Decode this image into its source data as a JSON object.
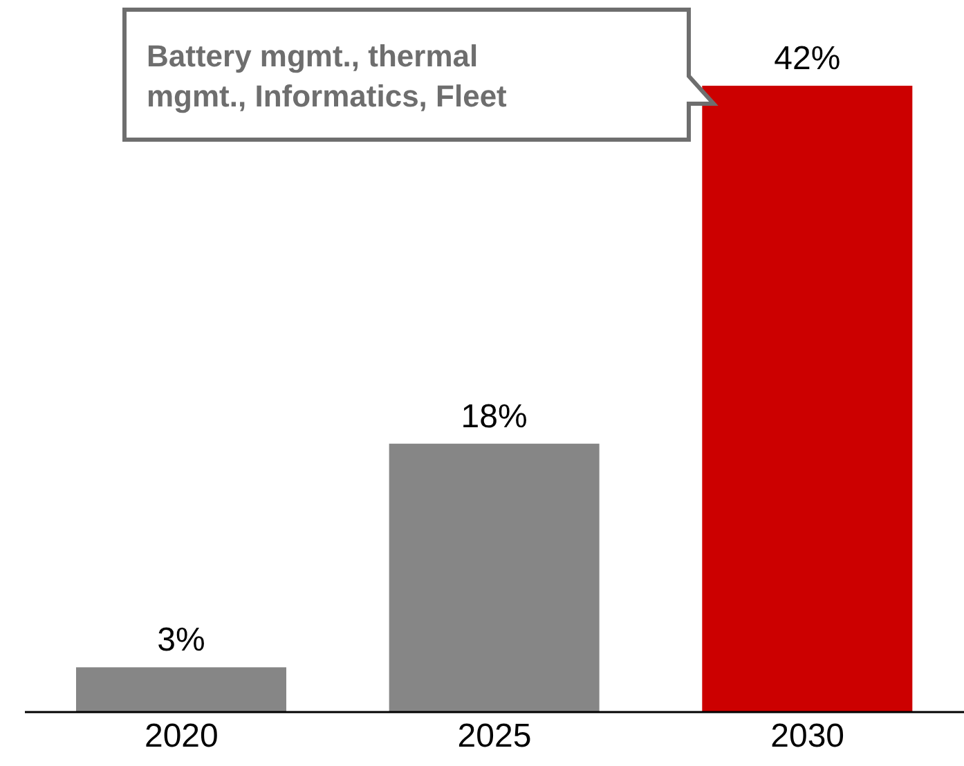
{
  "chart_data": {
    "type": "bar",
    "categories": [
      "2020",
      "2025",
      "2030"
    ],
    "values": [
      3,
      18,
      42
    ],
    "colors": [
      "#868686",
      "#868686",
      "#cc0000"
    ],
    "value_labels": [
      "3%",
      "18%",
      "42%"
    ],
    "tick_labels": "x",
    "annotations": [
      "Battery mgmt., thermal mgmt., Informatics, Fleet"
    ]
  }
}
